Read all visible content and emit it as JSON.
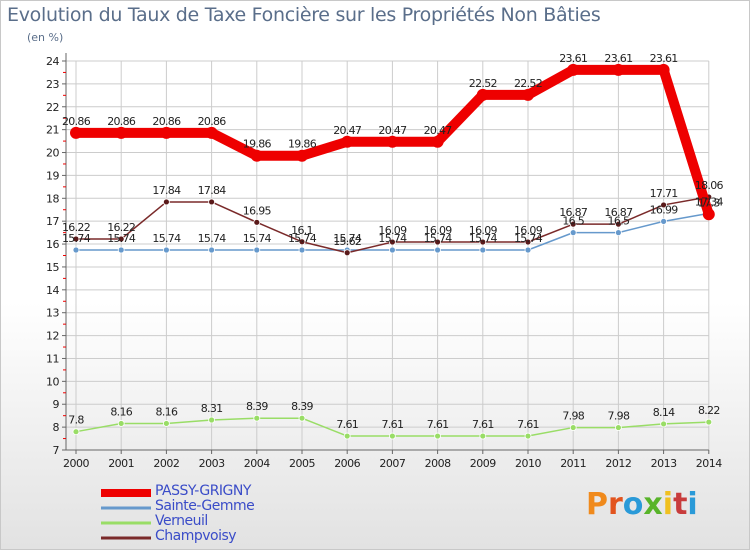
{
  "title": "Evolution du Taux de Taxe Foncière sur les Propriétés Non Bâties",
  "unit_label": "(en %)",
  "brand": "Proxiti",
  "colors": {
    "title": "#5a6e8a",
    "legend_text": "#3a4cc8",
    "passy_grigny": "#ee0000",
    "sainte_gemme": "#6699cc",
    "verneuil": "#99dd66",
    "champvoisy": "#7a2a2a",
    "grid": "#cccccc",
    "axis": "#666666",
    "brand_letters": [
      "#f08a1c",
      "#e2541e",
      "#2a9ad8",
      "#58b42a",
      "#f0c020",
      "#c83c3c",
      "#2a9ad8"
    ]
  },
  "chart_data": {
    "type": "line",
    "title": "Evolution du Taux de Taxe Foncière sur les Propriétés Non Bâties",
    "ylabel": "(en %)",
    "xlabel": "",
    "ylim": [
      7,
      24
    ],
    "yticks": [
      7,
      8,
      9,
      10,
      11,
      12,
      13,
      14,
      15,
      16,
      17,
      18,
      19,
      20,
      21,
      22,
      23,
      24
    ],
    "categories": [
      "2000",
      "2001",
      "2002",
      "2003",
      "2004",
      "2005",
      "2006",
      "2007",
      "2008",
      "2009",
      "2010",
      "2011",
      "2012",
      "2013",
      "2014"
    ],
    "grid": true,
    "legend_position": "bottom-left",
    "series": [
      {
        "name": "PASSY-GRIGNY",
        "color": "#ee0000",
        "values": [
          20.86,
          20.86,
          20.86,
          20.86,
          19.86,
          19.86,
          20.47,
          20.47,
          20.47,
          22.52,
          22.52,
          23.61,
          23.61,
          23.61,
          17.3
        ],
        "labels": [
          "20.86",
          "20.86",
          "20.86",
          "20.86",
          "19.86",
          "19.86",
          "20.47",
          "20.47",
          "20.47",
          "22.52",
          "22.52",
          "23.61",
          "23.61",
          "23.61",
          "17.3"
        ]
      },
      {
        "name": "Sainte-Gemme",
        "color": "#6699cc",
        "values": [
          15.74,
          15.74,
          15.74,
          15.74,
          15.74,
          15.74,
          15.74,
          15.74,
          15.74,
          15.74,
          15.74,
          16.5,
          16.5,
          16.99,
          17.34
        ],
        "labels": [
          "15.74",
          "15.74",
          "15.74",
          "15.74",
          "15.74",
          "15.74",
          "15.74",
          "15.74",
          "15.74",
          "15.74",
          "15.74",
          "16.5",
          "16.5",
          "16.99",
          "17.34"
        ]
      },
      {
        "name": "Verneuil",
        "color": "#99dd66",
        "values": [
          7.8,
          8.16,
          8.16,
          8.31,
          8.39,
          8.39,
          7.61,
          7.61,
          7.61,
          7.61,
          7.61,
          7.98,
          7.98,
          8.14,
          8.22
        ],
        "labels": [
          "7.8",
          "8.16",
          "8.16",
          "8.31",
          "8.39",
          "8.39",
          "7.61",
          "7.61",
          "7.61",
          "7.61",
          "7.61",
          "7.98",
          "7.98",
          "8.14",
          "8.22"
        ]
      },
      {
        "name": "Champvoisy",
        "color": "#7a2a2a",
        "values": [
          16.22,
          16.22,
          17.84,
          17.84,
          16.95,
          16.1,
          15.62,
          16.09,
          16.09,
          16.09,
          16.09,
          16.87,
          16.87,
          17.71,
          18.06
        ],
        "labels": [
          "16.22",
          "16.22",
          "17.84",
          "17.84",
          "16.95",
          "16.1",
          "15.62",
          "16.09",
          "16.09",
          "16.09",
          "16.09",
          "16.87",
          "16.87",
          "17.71",
          "18.06"
        ]
      }
    ]
  },
  "legend": [
    {
      "label": "PASSY-GRIGNY",
      "color": "#ee0000",
      "thickness": 8
    },
    {
      "label": "Sainte-Gemme",
      "color": "#6699cc",
      "thickness": 3
    },
    {
      "label": "Verneuil",
      "color": "#99dd66",
      "thickness": 3
    },
    {
      "label": "Champvoisy",
      "color": "#7a2a2a",
      "thickness": 3
    }
  ]
}
